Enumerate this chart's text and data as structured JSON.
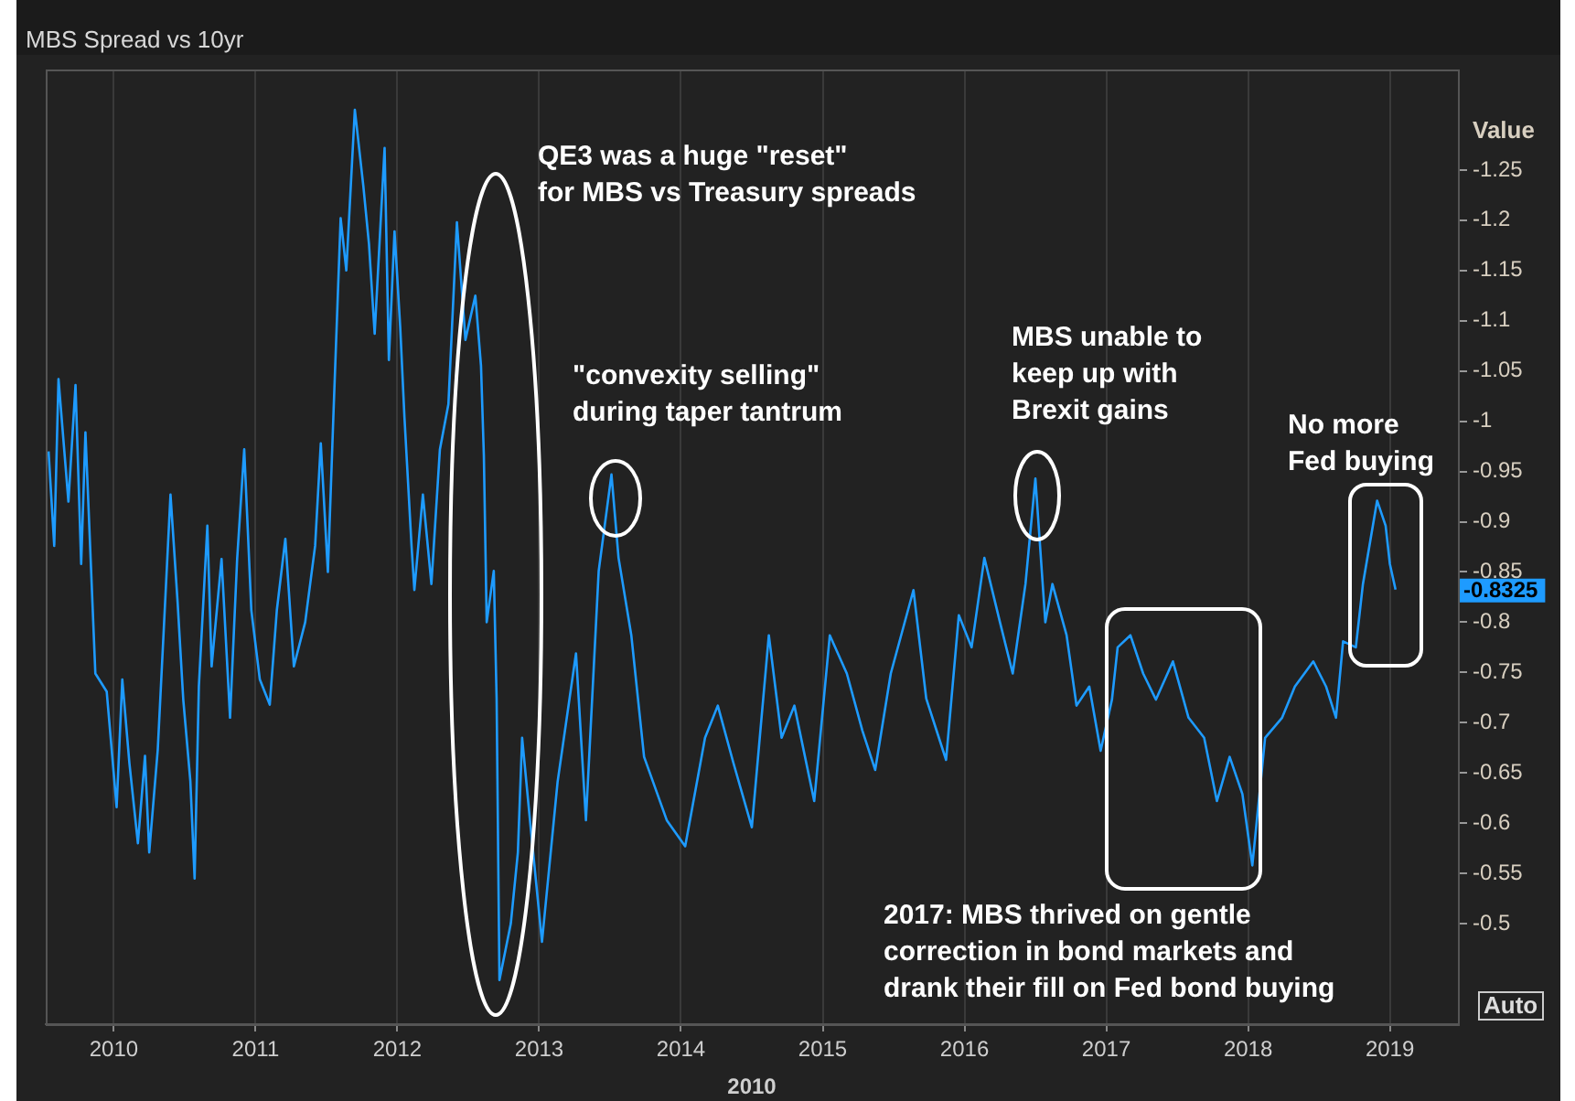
{
  "chart_data": {
    "type": "line",
    "title": "MBS Spread vs 10yr",
    "xlabel": "2010",
    "ylabel": "Value",
    "x": [
      2009.54,
      2009.58,
      2009.61,
      2009.68,
      2009.73,
      2009.77,
      2009.8,
      2009.87,
      2009.95,
      2010.02,
      2010.06,
      2010.11,
      2010.17,
      2010.22,
      2010.25,
      2010.31,
      2010.4,
      2010.45,
      2010.49,
      2010.54,
      2010.57,
      2010.6,
      2010.66,
      2010.69,
      2010.76,
      2010.82,
      2010.87,
      2010.92,
      2010.97,
      2011.03,
      2011.1,
      2011.15,
      2011.21,
      2011.27,
      2011.35,
      2011.42,
      2011.46,
      2011.51,
      2011.55,
      2011.6,
      2011.64,
      2011.7,
      2011.76,
      2011.8,
      2011.84,
      2011.91,
      2011.94,
      2011.98,
      2012.02,
      2012.05,
      2012.1,
      2012.12,
      2012.18,
      2012.24,
      2012.3,
      2012.36,
      2012.42,
      2012.48,
      2012.55,
      2012.59,
      2012.61,
      2012.63,
      2012.68,
      2012.7,
      2012.72,
      2012.8,
      2012.85,
      2012.88,
      2012.94,
      2013.02,
      2013.13,
      2013.26,
      2013.33,
      2013.42,
      2013.51,
      2013.56,
      2013.65,
      2013.74,
      2013.9,
      2014.03,
      2014.17,
      2014.26,
      2014.37,
      2014.5,
      2014.62,
      2014.71,
      2014.8,
      2014.94,
      2015.05,
      2015.17,
      2015.28,
      2015.37,
      2015.48,
      2015.64,
      2015.73,
      2015.87,
      2015.96,
      2016.05,
      2016.14,
      2016.25,
      2016.34,
      2016.43,
      2016.5,
      2016.57,
      2016.62,
      2016.72,
      2016.79,
      2016.88,
      2016.96,
      2017.04,
      2017.08,
      2017.17,
      2017.26,
      2017.35,
      2017.47,
      2017.58,
      2017.69,
      2017.78,
      2017.87,
      2017.96,
      2018.03,
      2018.12,
      2018.24,
      2018.33,
      2018.46,
      2018.55,
      2018.62,
      2018.67,
      2018.76,
      2018.81,
      2018.91,
      2018.97,
      2019.0,
      2019.04
    ],
    "series": [
      {
        "color": "#1e9bff",
        "values": [
          -0.97,
          -0.876,
          -1.042,
          -0.92,
          -1.036,
          -0.858,
          -0.989,
          -0.749,
          -0.731,
          -0.616,
          -0.743,
          -0.66,
          -0.58,
          -0.667,
          -0.571,
          -0.673,
          -0.927,
          -0.82,
          -0.723,
          -0.642,
          -0.545,
          -0.736,
          -0.896,
          -0.756,
          -0.863,
          -0.705,
          -0.863,
          -0.972,
          -0.812,
          -0.743,
          -0.718,
          -0.812,
          -0.883,
          -0.756,
          -0.8,
          -0.876,
          -0.978,
          -0.85,
          -1.01,
          -1.202,
          -1.15,
          -1.31,
          -1.234,
          -1.176,
          -1.087,
          -1.272,
          -1.061,
          -1.189,
          -1.094,
          -1.004,
          -0.876,
          -0.832,
          -0.927,
          -0.838,
          -0.972,
          -1.017,
          -1.198,
          -1.081,
          -1.125,
          -1.055,
          -0.966,
          -0.8,
          -0.851,
          -0.724,
          -0.444,
          -0.5,
          -0.571,
          -0.685,
          -0.596,
          -0.482,
          -0.641,
          -0.769,
          -0.603,
          -0.851,
          -0.947,
          -0.864,
          -0.787,
          -0.666,
          -0.603,
          -0.577,
          -0.685,
          -0.717,
          -0.66,
          -0.596,
          -0.787,
          -0.685,
          -0.717,
          -0.622,
          -0.787,
          -0.749,
          -0.692,
          -0.653,
          -0.749,
          -0.832,
          -0.724,
          -0.663,
          -0.807,
          -0.775,
          -0.864,
          -0.8,
          -0.749,
          -0.838,
          -0.943,
          -0.8,
          -0.838,
          -0.787,
          -0.717,
          -0.736,
          -0.672,
          -0.723,
          -0.775,
          -0.787,
          -0.749,
          -0.723,
          -0.761,
          -0.705,
          -0.685,
          -0.622,
          -0.666,
          -0.629,
          -0.558,
          -0.685,
          -0.705,
          -0.736,
          -0.761,
          -0.736,
          -0.705,
          -0.781,
          -0.775,
          -0.838,
          -0.921,
          -0.896,
          -0.858,
          -0.8325
        ]
      }
    ],
    "xlim": [
      2009.52,
      2019.48
    ],
    "xticks": [
      2010,
      2011,
      2012,
      2013,
      2014,
      2015,
      2016,
      2017,
      2018,
      2019
    ],
    "ylim": [
      -0.4,
      -1.35
    ],
    "yticks": [
      -1.25,
      -1.2,
      -1.15,
      -1.1,
      -1.05,
      -1,
      -0.95,
      -0.9,
      -0.85,
      -0.8,
      -0.75,
      -0.7,
      -0.65,
      -0.6,
      -0.55,
      -0.5
    ],
    "grid": "x",
    "legend": false,
    "annotations": [
      "QE3 was a huge \"reset\"\nfor MBS vs Treasury spreads",
      "\"convexity selling\"\nduring taper tantrum",
      "MBS unable to\nkeep up with\nBrexit gains",
      "No more\nFed buying",
      "2017: MBS thrived on gentle\ncorrection in bond markets and\ndrank their fill on Fed bond buying",
      "Auto",
      "-0.8325"
    ]
  }
}
